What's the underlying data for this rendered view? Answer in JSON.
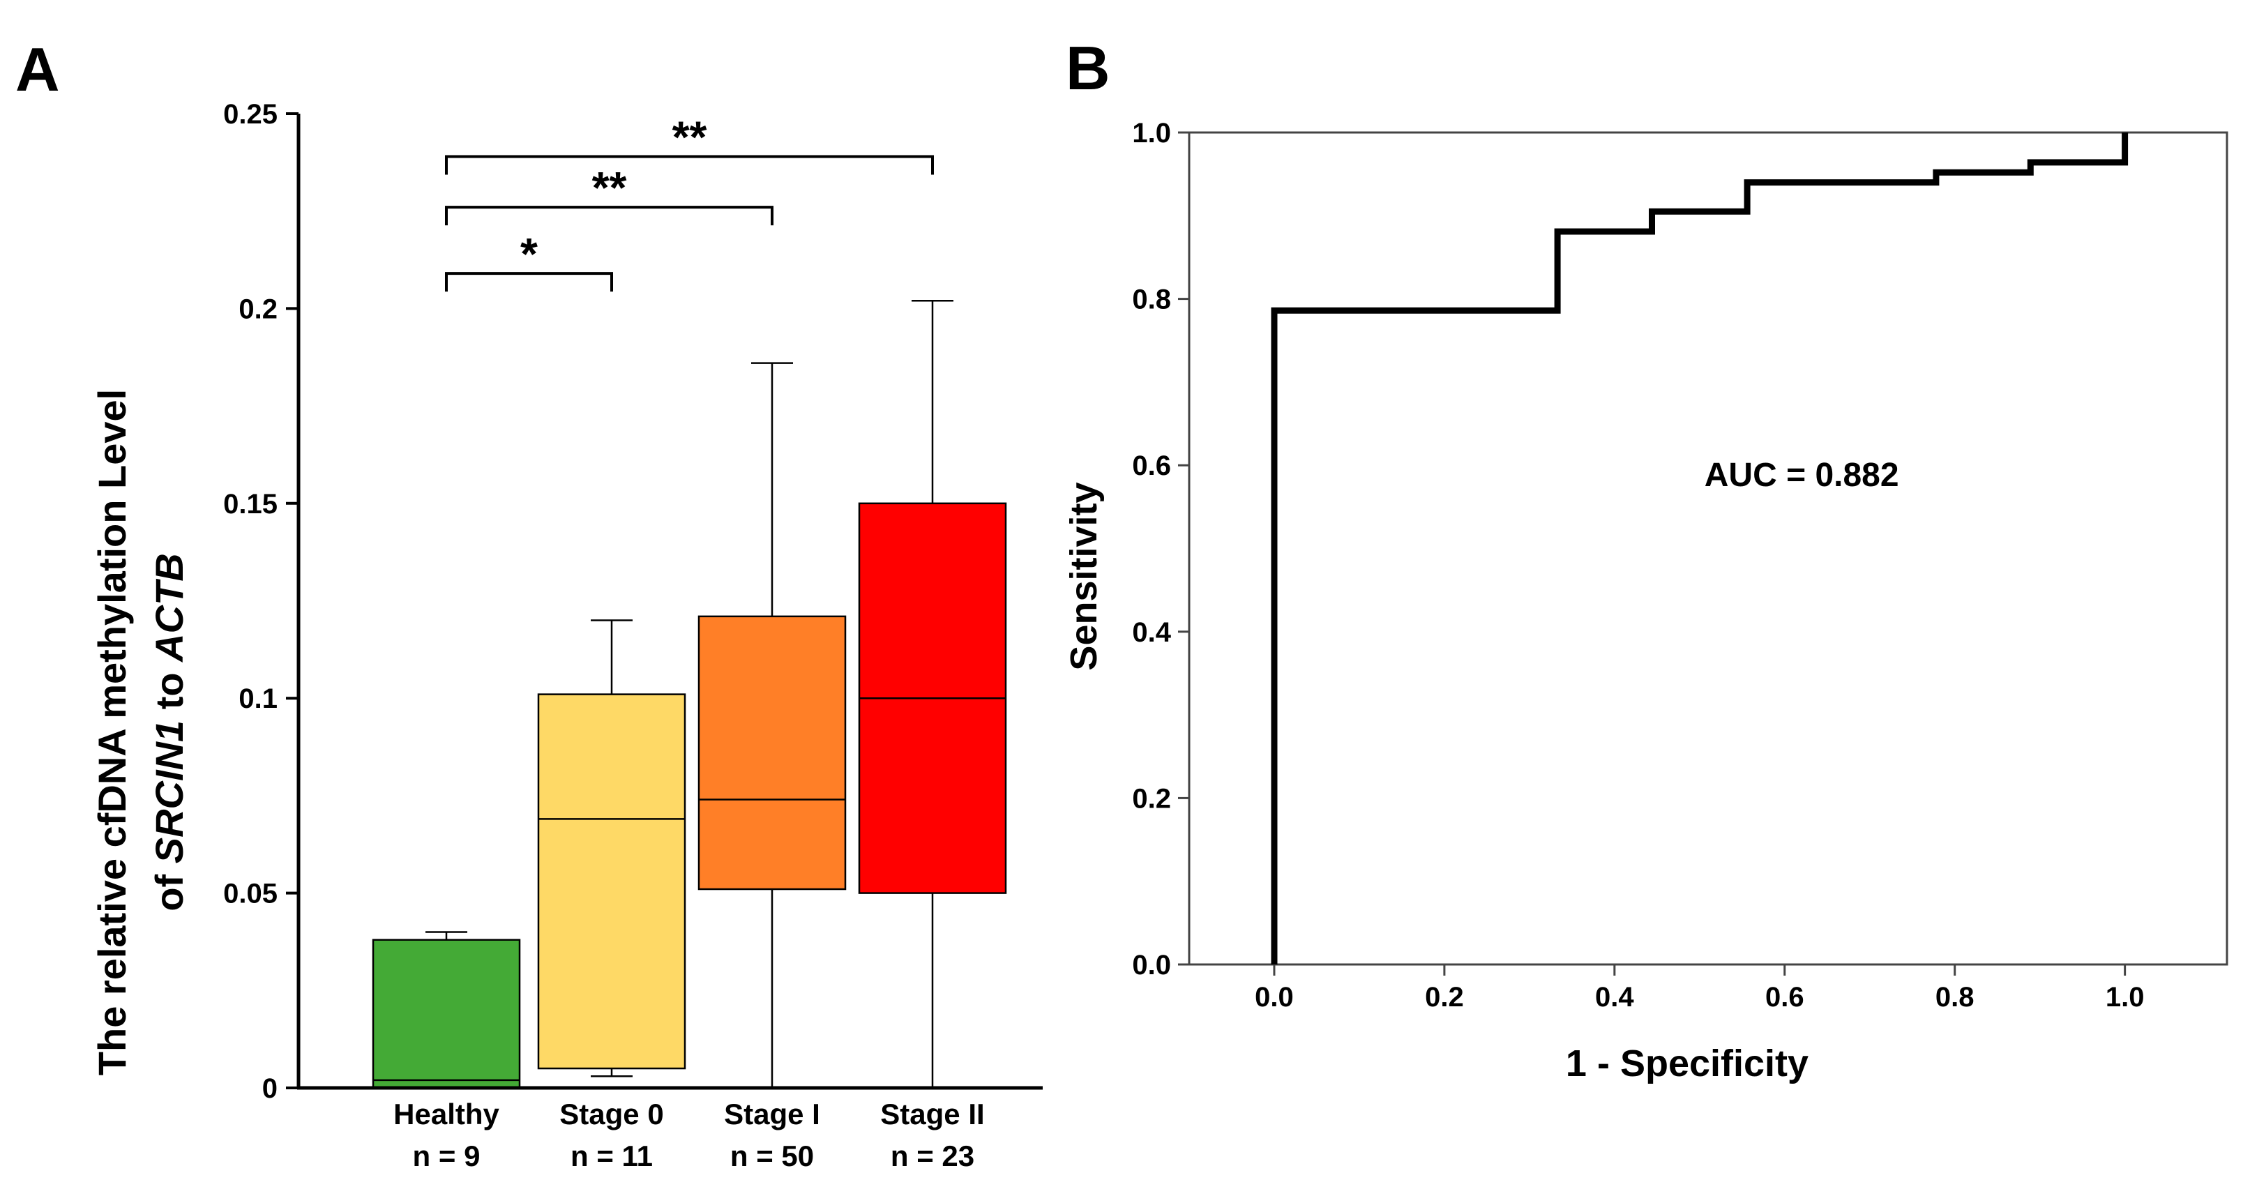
{
  "panels": {
    "a_letter": "A",
    "b_letter": "B"
  },
  "chart_data": [
    {
      "type": "box",
      "ylabel_line1": "The relative cfDNA methylation Level",
      "ylabel_line2_parts": [
        "of ",
        "SRCIN1",
        " to ",
        "ACTB"
      ],
      "ylim": [
        0,
        0.25
      ],
      "yticks": [
        0,
        0.05,
        0.1,
        0.15,
        0.2,
        0.25
      ],
      "ytick_labels": [
        "0",
        "0.05",
        "0.1",
        "0.15",
        "0.2",
        "0.25"
      ],
      "groups": [
        {
          "name": "Healthy",
          "n_label": "n = 9",
          "whisker_low": 0.0,
          "q1": 0.0,
          "median": 0.002,
          "q3": 0.038,
          "whisker_high": 0.04,
          "color": "#44AA36"
        },
        {
          "name": "Stage 0",
          "n_label": "n = 11",
          "whisker_low": 0.003,
          "q1": 0.005,
          "median": 0.069,
          "q3": 0.101,
          "whisker_high": 0.12,
          "color": "#FED966"
        },
        {
          "name": "Stage I",
          "n_label": "n = 50",
          "whisker_low": 0.0,
          "q1": 0.051,
          "median": 0.074,
          "q3": 0.121,
          "whisker_high": 0.186,
          "color": "#FF7F27"
        },
        {
          "name": "Stage II",
          "n_label": "n = 23",
          "whisker_low": 0.0,
          "q1": 0.05,
          "median": 0.1,
          "q3": 0.15,
          "whisker_high": 0.202,
          "color": "#FF0000"
        }
      ],
      "significance": [
        {
          "from": 0,
          "to": 1,
          "label": "*",
          "level": 0.209
        },
        {
          "from": 0,
          "to": 2,
          "label": "**",
          "level": 0.226
        },
        {
          "from": 0,
          "to": 3,
          "label": "**",
          "level": 0.239
        }
      ]
    },
    {
      "type": "line",
      "title": "",
      "xlabel": "1 - Specificity",
      "ylabel": "Sensitivity",
      "xlim": [
        -0.1,
        1.12
      ],
      "ylim": [
        0,
        1
      ],
      "xticks": [
        0.0,
        0.2,
        0.4,
        0.6,
        0.8,
        1.0
      ],
      "xtick_labels": [
        "0.0",
        "0.2",
        "0.4",
        "0.6",
        "0.8",
        "1.0"
      ],
      "yticks": [
        0.0,
        0.2,
        0.4,
        0.6,
        0.8,
        1.0
      ],
      "ytick_labels": [
        "0.0",
        "0.2",
        "0.4",
        "0.6",
        "0.8",
        "1.0"
      ],
      "annotation": "AUC = 0.882",
      "auc": 0.882,
      "roc_x": [
        0.0,
        0.0,
        0.333,
        0.333,
        0.444,
        0.444,
        0.556,
        0.556,
        0.778,
        0.778,
        0.889,
        0.889,
        1.0,
        1.0
      ],
      "roc_y": [
        0.0,
        0.786,
        0.786,
        0.881,
        0.881,
        0.905,
        0.905,
        0.94,
        0.94,
        0.952,
        0.952,
        0.964,
        0.964,
        1.0
      ]
    }
  ]
}
